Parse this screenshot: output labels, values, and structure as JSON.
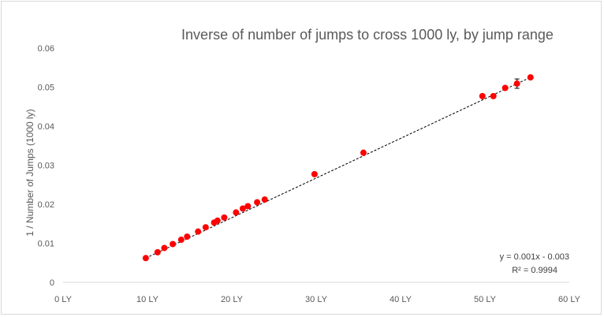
{
  "chart_data": {
    "type": "scatter",
    "title": "Inverse of number of jumps to cross 1000 ly, by jump range",
    "xlabel": "",
    "ylabel": "1 / Number of Jumps (1000 ly)",
    "xlim": [
      0,
      60
    ],
    "ylim": [
      0,
      0.06
    ],
    "x_ticks": [
      0,
      10,
      20,
      30,
      40,
      50,
      60
    ],
    "x_tick_labels": [
      "0 LY",
      "10 LY",
      "20 LY",
      "30 LY",
      "40 LY",
      "50 LY",
      "60 LY"
    ],
    "y_ticks": [
      0,
      0.01,
      0.02,
      0.03,
      0.04,
      0.05,
      0.06
    ],
    "y_tick_labels": [
      "0",
      "0.01",
      "0.02",
      "0.03",
      "0.04",
      "0.05",
      "0.06"
    ],
    "grid": false,
    "colors": {
      "points": "#ff0000",
      "trendline": "#000000",
      "text": "#595959"
    },
    "points": [
      {
        "x": 9.8,
        "y": 0.0062
      },
      {
        "x": 11.2,
        "y": 0.0077
      },
      {
        "x": 12.0,
        "y": 0.0088
      },
      {
        "x": 13.0,
        "y": 0.0098
      },
      {
        "x": 14.0,
        "y": 0.0109
      },
      {
        "x": 14.7,
        "y": 0.0117
      },
      {
        "x": 16.0,
        "y": 0.013
      },
      {
        "x": 16.9,
        "y": 0.0141
      },
      {
        "x": 17.9,
        "y": 0.0153
      },
      {
        "x": 18.3,
        "y": 0.0158
      },
      {
        "x": 19.1,
        "y": 0.0166
      },
      {
        "x": 20.5,
        "y": 0.0179
      },
      {
        "x": 21.3,
        "y": 0.0189
      },
      {
        "x": 21.9,
        "y": 0.0195
      },
      {
        "x": 23.0,
        "y": 0.0205
      },
      {
        "x": 23.9,
        "y": 0.0212
      },
      {
        "x": 29.8,
        "y": 0.0277
      },
      {
        "x": 35.6,
        "y": 0.0332
      },
      {
        "x": 49.7,
        "y": 0.0477
      },
      {
        "x": 51.0,
        "y": 0.0477
      },
      {
        "x": 52.4,
        "y": 0.0498
      },
      {
        "x": 53.8,
        "y": 0.0509
      },
      {
        "x": 55.4,
        "y": 0.0525
      }
    ],
    "error_bars": [
      {
        "x": 53.8,
        "y_low": 0.0497,
        "y_high": 0.0521
      }
    ],
    "trendline": {
      "type": "linear",
      "style": "dashed",
      "x_range": [
        9.8,
        55.4
      ],
      "y_range": [
        0.0062,
        0.0525
      ],
      "equation": "y = 0.001x - 0.003",
      "r_squared": "R² = 0.9994"
    }
  }
}
